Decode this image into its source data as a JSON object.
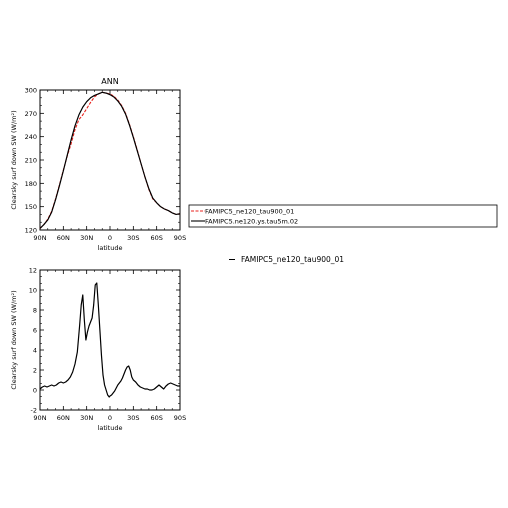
{
  "chart_data": [
    {
      "type": "line",
      "title": "ANN",
      "xlabel": "latitude",
      "ylabel": "Clearsky surf down SW (W/m²)",
      "xlim": [
        90,
        -90
      ],
      "ylim": [
        120,
        300
      ],
      "yticks": [
        120,
        150,
        180,
        210,
        240,
        270,
        300
      ],
      "xticks": [
        {
          "value": 90,
          "label": "90N"
        },
        {
          "value": 60,
          "label": "60N"
        },
        {
          "value": 30,
          "label": "30N"
        },
        {
          "value": 0,
          "label": "0"
        },
        {
          "value": -30,
          "label": "30S"
        },
        {
          "value": -60,
          "label": "60S"
        },
        {
          "value": -90,
          "label": "90S"
        }
      ],
      "legend": {
        "placement": "right",
        "entries": [
          "FAMIPC5_ne120_tau900_01",
          "FAMIPC5.ne120.ys.tau5m.02"
        ]
      },
      "series": [
        {
          "name": "FAMIPC5_ne120_tau900_01",
          "color": "#e8211c",
          "dash": "dashed",
          "x": [
            90,
            85,
            80,
            75,
            70,
            65,
            60,
            55,
            50,
            45,
            40,
            35,
            30,
            25,
            20,
            15,
            10,
            5,
            0,
            -5,
            -10,
            -15,
            -20,
            -25,
            -30,
            -35,
            -40,
            -45,
            -50,
            -55,
            -60,
            -65,
            -70,
            -75,
            -80,
            -85,
            -90
          ],
          "y": [
            122,
            127,
            134,
            144,
            160,
            178,
            197,
            215,
            231,
            249,
            262,
            268,
            276,
            284,
            291,
            295,
            297,
            296,
            295,
            292,
            287,
            280,
            270,
            256,
            240,
            223,
            205,
            188,
            172,
            160,
            155,
            150,
            147,
            145,
            142,
            140,
            141
          ]
        },
        {
          "name": "FAMIPC5.ne120.ys.tau5m.02",
          "color": "#000000",
          "dash": "solid",
          "x": [
            90,
            85,
            80,
            75,
            70,
            65,
            60,
            55,
            50,
            45,
            40,
            35,
            30,
            25,
            20,
            15,
            10,
            5,
            0,
            -5,
            -10,
            -15,
            -20,
            -25,
            -30,
            -35,
            -40,
            -45,
            -50,
            -55,
            -60,
            -65,
            -70,
            -75,
            -80,
            -85,
            -90
          ],
          "y": [
            122,
            127,
            133,
            143,
            159,
            177,
            196,
            216,
            236,
            254,
            268,
            278,
            285,
            290,
            293,
            295,
            297,
            296,
            294,
            291,
            286,
            279,
            269,
            255,
            239,
            222,
            205,
            188,
            173,
            161,
            155,
            150,
            147,
            145,
            142,
            140,
            141
          ]
        }
      ]
    },
    {
      "type": "line",
      "title": "",
      "xlabel": "latitude",
      "ylabel": "Clearsky surf down SW (W/m²)",
      "xlim": [
        90,
        -90
      ],
      "ylim": [
        -2,
        12
      ],
      "yticks": [
        -2,
        0,
        2,
        4,
        6,
        8,
        10,
        12
      ],
      "xticks": [
        {
          "value": 90,
          "label": "90N"
        },
        {
          "value": 60,
          "label": "60N"
        },
        {
          "value": 30,
          "label": "30N"
        },
        {
          "value": 0,
          "label": "0"
        },
        {
          "value": -30,
          "label": "30S"
        },
        {
          "value": -60,
          "label": "60S"
        },
        {
          "value": -90,
          "label": "90S"
        }
      ],
      "legend": {
        "placement": "right",
        "entries": [
          "FAMIPC5_ne120_tau900_01"
        ]
      },
      "series": [
        {
          "color": "#000000",
          "dash": "solid",
          "x": [
            90,
            87,
            84,
            81,
            78,
            75,
            72,
            69,
            66,
            63,
            60,
            57,
            54,
            51,
            48,
            45,
            42,
            39,
            37,
            35,
            33,
            31,
            29,
            27,
            25,
            23,
            21,
            19,
            17,
            15,
            13,
            11,
            9,
            7,
            5,
            3,
            1,
            0,
            -2,
            -4,
            -6,
            -8,
            -10,
            -12,
            -14,
            -16,
            -18,
            -20,
            -22,
            -24,
            -26,
            -28,
            -30,
            -33,
            -36,
            -39,
            -42,
            -45,
            -48,
            -51,
            -54,
            -57,
            -60,
            -63,
            -66,
            -69,
            -72,
            -75,
            -78,
            -81,
            -84,
            -87,
            -90
          ],
          "y": [
            0.1,
            0.3,
            0.4,
            0.3,
            0.4,
            0.5,
            0.4,
            0.5,
            0.7,
            0.8,
            0.7,
            0.8,
            1.0,
            1.3,
            1.8,
            2.6,
            3.8,
            6.5,
            8.5,
            9.5,
            7.0,
            5.0,
            5.8,
            6.4,
            6.8,
            7.2,
            8.5,
            10.5,
            10.7,
            8.5,
            6.0,
            3.5,
            1.5,
            0.5,
            0.0,
            -0.5,
            -0.7,
            -0.6,
            -0.5,
            -0.3,
            -0.1,
            0.2,
            0.5,
            0.7,
            0.9,
            1.2,
            1.6,
            2.0,
            2.3,
            2.4,
            2.0,
            1.3,
            1.0,
            0.8,
            0.5,
            0.3,
            0.2,
            0.1,
            0.1,
            0.0,
            0.0,
            0.1,
            0.3,
            0.5,
            0.3,
            0.1,
            0.4,
            0.6,
            0.7,
            0.6,
            0.5,
            0.4,
            0.4
          ]
        }
      ]
    }
  ]
}
